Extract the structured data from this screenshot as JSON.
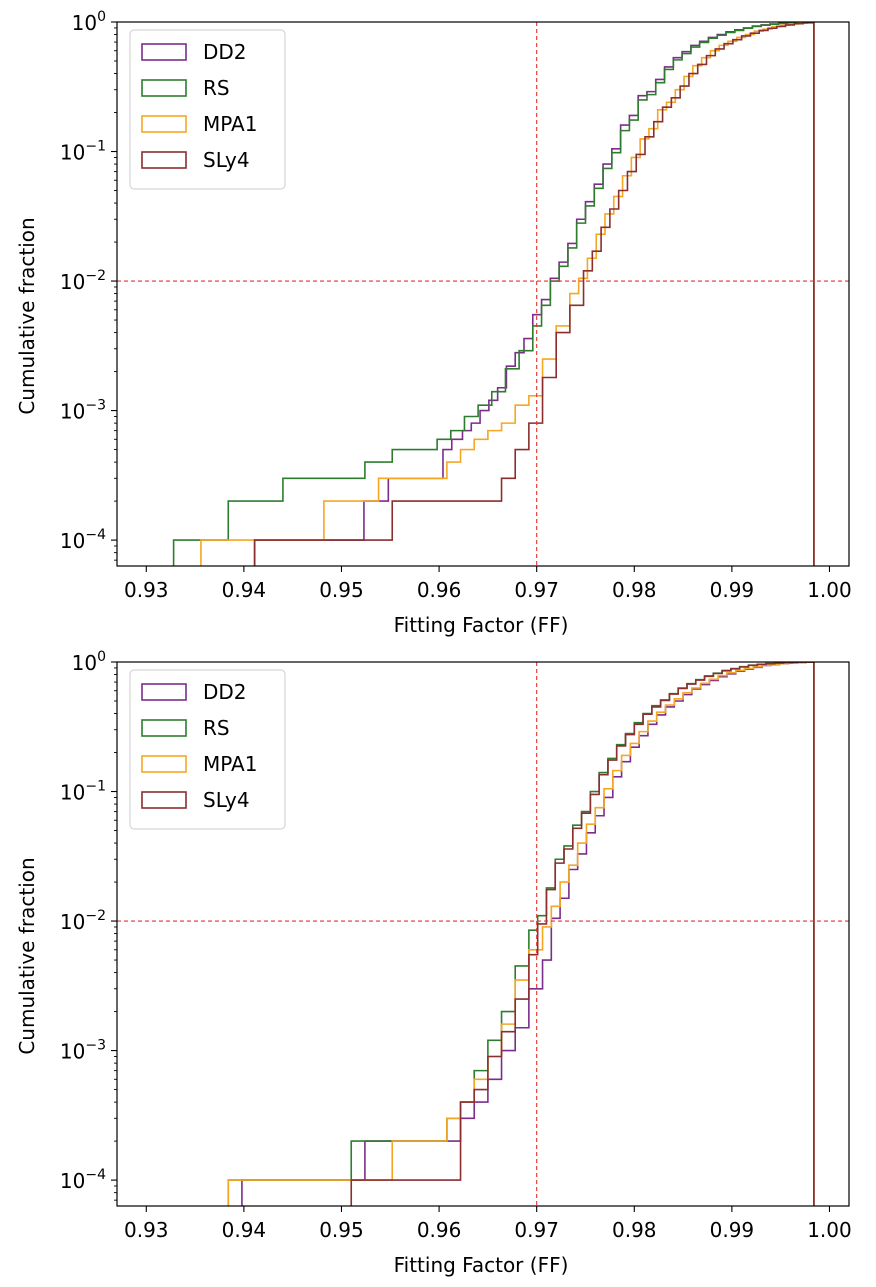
{
  "chart_data": [
    {
      "type": "step-histogram-cumulative",
      "xlabel": "Fitting Factor (FF)",
      "ylabel": "Cumulative fraction",
      "xlim": [
        0.927,
        1.002
      ],
      "ylim_log10": [
        -4.2,
        0.0
      ],
      "y_scale": "log",
      "x_ticks": [
        "0.93",
        "0.94",
        "0.95",
        "0.96",
        "0.97",
        "0.98",
        "0.99",
        "1.00"
      ],
      "x_tick_values": [
        0.93,
        0.94,
        0.95,
        0.96,
        0.97,
        0.98,
        0.99,
        1.0
      ],
      "y_tick_base": "10",
      "y_tick_exponents": [
        "0",
        "−1",
        "−2",
        "−3",
        "−4"
      ],
      "y_tick_values": [
        1,
        0.1,
        0.01,
        0.001,
        0.0001
      ],
      "reference_lines": {
        "x": 0.97,
        "y": 0.01,
        "color": "#e8322a"
      },
      "legend_position": "top-left",
      "series": [
        {
          "name": "DD2",
          "color": "#7b2d8b",
          "x": [
            0.9411,
            0.9523,
            0.9548,
            0.9604,
            0.9613,
            0.9624,
            0.9633,
            0.9642,
            0.9651,
            0.966,
            0.9669,
            0.9678,
            0.9687,
            0.9696,
            0.9705,
            0.9714,
            0.9723,
            0.9732,
            0.9741,
            0.975,
            0.9759,
            0.9768,
            0.9777,
            0.9786,
            0.9795,
            0.9804,
            0.9813,
            0.9822,
            0.9831,
            0.984,
            0.9849,
            0.9858,
            0.9867,
            0.9876,
            0.9885,
            0.9894,
            0.9903,
            0.9912,
            0.9921,
            0.993,
            0.9939,
            0.9948,
            0.9957,
            0.9966,
            0.9975,
            0.9984
          ],
          "y": [
            0.0001,
            0.0002,
            0.0003,
            0.0005,
            0.0006,
            0.0007,
            0.0008,
            0.001,
            0.0012,
            0.0015,
            0.0022,
            0.0028,
            0.0036,
            0.0055,
            0.0072,
            0.0105,
            0.014,
            0.0195,
            0.03,
            0.041,
            0.056,
            0.08,
            0.105,
            0.16,
            0.19,
            0.27,
            0.29,
            0.36,
            0.45,
            0.53,
            0.59,
            0.66,
            0.71,
            0.76,
            0.8,
            0.84,
            0.87,
            0.9,
            0.93,
            0.95,
            0.965,
            0.978,
            0.987,
            0.994,
            0.998,
            1.0
          ]
        },
        {
          "name": "RS",
          "color": "#2e7d2e",
          "x": [
            0.9328,
            0.9384,
            0.944,
            0.9524,
            0.9552,
            0.9598,
            0.9612,
            0.9626,
            0.964,
            0.9654,
            0.9668,
            0.9682,
            0.9696,
            0.9705,
            0.9714,
            0.9723,
            0.9732,
            0.9741,
            0.975,
            0.9759,
            0.9768,
            0.9777,
            0.9786,
            0.9795,
            0.9804,
            0.9813,
            0.9822,
            0.9831,
            0.984,
            0.9849,
            0.9858,
            0.9867,
            0.9876,
            0.9885,
            0.9894,
            0.9903,
            0.9912,
            0.9921,
            0.993,
            0.9939,
            0.9948,
            0.9957,
            0.9966,
            0.9975,
            0.9984
          ],
          "y": [
            0.0001,
            0.0002,
            0.0003,
            0.0004,
            0.0005,
            0.0006,
            0.0007,
            0.0009,
            0.0011,
            0.0014,
            0.0021,
            0.0029,
            0.0045,
            0.0065,
            0.01,
            0.013,
            0.018,
            0.028,
            0.038,
            0.052,
            0.074,
            0.098,
            0.145,
            0.175,
            0.25,
            0.275,
            0.34,
            0.43,
            0.51,
            0.57,
            0.64,
            0.695,
            0.75,
            0.79,
            0.83,
            0.86,
            0.895,
            0.925,
            0.945,
            0.962,
            0.976,
            0.986,
            0.993,
            0.998,
            1.0
          ]
        },
        {
          "name": "MPA1",
          "color": "#f5a623",
          "x": [
            0.9356,
            0.9482,
            0.9538,
            0.9608,
            0.9622,
            0.9636,
            0.965,
            0.9664,
            0.9678,
            0.9692,
            0.9706,
            0.972,
            0.9734,
            0.9743,
            0.9752,
            0.9761,
            0.977,
            0.9779,
            0.9788,
            0.9797,
            0.9806,
            0.9815,
            0.9824,
            0.9833,
            0.9842,
            0.9851,
            0.986,
            0.9869,
            0.9878,
            0.9887,
            0.9896,
            0.9905,
            0.9914,
            0.9923,
            0.9932,
            0.9941,
            0.995,
            0.9959,
            0.9968,
            0.9977,
            0.9984
          ],
          "y": [
            0.0001,
            0.0002,
            0.0003,
            0.0004,
            0.0005,
            0.0006,
            0.0007,
            0.0008,
            0.0011,
            0.0013,
            0.0025,
            0.0045,
            0.008,
            0.0105,
            0.015,
            0.023,
            0.033,
            0.045,
            0.065,
            0.09,
            0.125,
            0.15,
            0.21,
            0.24,
            0.3,
            0.38,
            0.46,
            0.53,
            0.6,
            0.66,
            0.71,
            0.76,
            0.8,
            0.85,
            0.88,
            0.92,
            0.945,
            0.965,
            0.98,
            0.992,
            1.0
          ]
        },
        {
          "name": "SLy4",
          "color": "#8b2e2e",
          "x": [
            0.9411,
            0.9552,
            0.9664,
            0.9678,
            0.9692,
            0.9706,
            0.972,
            0.9734,
            0.9748,
            0.9757,
            0.9766,
            0.9775,
            0.9784,
            0.9793,
            0.9802,
            0.9811,
            0.982,
            0.9829,
            0.9838,
            0.9847,
            0.9856,
            0.9865,
            0.9874,
            0.9883,
            0.9892,
            0.9901,
            0.991,
            0.9919,
            0.9928,
            0.9937,
            0.9946,
            0.9955,
            0.9964,
            0.9973,
            0.9984
          ],
          "y": [
            0.0001,
            0.0002,
            0.0003,
            0.0005,
            0.0008,
            0.0018,
            0.004,
            0.0065,
            0.012,
            0.017,
            0.026,
            0.036,
            0.05,
            0.07,
            0.095,
            0.13,
            0.17,
            0.22,
            0.26,
            0.32,
            0.4,
            0.47,
            0.55,
            0.62,
            0.68,
            0.73,
            0.78,
            0.82,
            0.86,
            0.895,
            0.925,
            0.95,
            0.97,
            0.985,
            1.0
          ]
        }
      ]
    },
    {
      "type": "step-histogram-cumulative",
      "xlabel": "Fitting Factor (FF)",
      "ylabel": "Cumulative fraction",
      "xlim": [
        0.927,
        1.002
      ],
      "ylim_log10": [
        -4.2,
        0.0
      ],
      "y_scale": "log",
      "x_ticks": [
        "0.93",
        "0.94",
        "0.95",
        "0.96",
        "0.97",
        "0.98",
        "0.99",
        "1.00"
      ],
      "x_tick_values": [
        0.93,
        0.94,
        0.95,
        0.96,
        0.97,
        0.98,
        0.99,
        1.0
      ],
      "y_tick_base": "10",
      "y_tick_exponents": [
        "0",
        "−1",
        "−2",
        "−3",
        "−4"
      ],
      "y_tick_values": [
        1,
        0.1,
        0.01,
        0.001,
        0.0001
      ],
      "reference_lines": {
        "x": 0.97,
        "y": 0.01,
        "color": "#e8322a"
      },
      "legend_position": "top-left",
      "series": [
        {
          "name": "DD2",
          "color": "#7b2d8b",
          "x": [
            0.9398,
            0.9524,
            0.9622,
            0.9636,
            0.965,
            0.9664,
            0.9678,
            0.9692,
            0.9706,
            0.9715,
            0.9724,
            0.9733,
            0.9742,
            0.9751,
            0.976,
            0.9769,
            0.9778,
            0.9787,
            0.9796,
            0.9805,
            0.9814,
            0.9823,
            0.9832,
            0.9841,
            0.985,
            0.9859,
            0.9868,
            0.9877,
            0.9886,
            0.9895,
            0.9904,
            0.9913,
            0.9922,
            0.9931,
            0.994,
            0.9949,
            0.9958,
            0.9967,
            0.9976,
            0.9984
          ],
          "y": [
            0.0001,
            0.0002,
            0.0003,
            0.0004,
            0.0006,
            0.001,
            0.0015,
            0.003,
            0.005,
            0.0105,
            0.015,
            0.025,
            0.033,
            0.048,
            0.065,
            0.09,
            0.13,
            0.17,
            0.22,
            0.27,
            0.33,
            0.39,
            0.45,
            0.5,
            0.56,
            0.62,
            0.67,
            0.72,
            0.77,
            0.81,
            0.85,
            0.88,
            0.91,
            0.94,
            0.955,
            0.97,
            0.982,
            0.99,
            0.996,
            1.0
          ]
        },
        {
          "name": "RS",
          "color": "#2e7d2e",
          "x": [
            0.9384,
            0.951,
            0.9608,
            0.9622,
            0.9636,
            0.965,
            0.9664,
            0.9678,
            0.9692,
            0.9701,
            0.971,
            0.9719,
            0.9728,
            0.9737,
            0.9746,
            0.9755,
            0.9764,
            0.9773,
            0.9782,
            0.9791,
            0.98,
            0.9809,
            0.9818,
            0.9827,
            0.9836,
            0.9845,
            0.9854,
            0.9863,
            0.9872,
            0.9881,
            0.989,
            0.9899,
            0.9908,
            0.9917,
            0.9926,
            0.9935,
            0.9944,
            0.9953,
            0.9962,
            0.9971,
            0.9984
          ],
          "y": [
            0.0001,
            0.0002,
            0.0003,
            0.0004,
            0.0007,
            0.0012,
            0.002,
            0.0045,
            0.0085,
            0.011,
            0.018,
            0.03,
            0.038,
            0.055,
            0.07,
            0.1,
            0.14,
            0.18,
            0.23,
            0.28,
            0.34,
            0.4,
            0.46,
            0.51,
            0.57,
            0.63,
            0.68,
            0.73,
            0.78,
            0.82,
            0.86,
            0.89,
            0.92,
            0.945,
            0.96,
            0.972,
            0.983,
            0.991,
            0.996,
            0.999,
            1.0
          ]
        },
        {
          "name": "MPA1",
          "color": "#f5a623",
          "x": [
            0.9384,
            0.9552,
            0.9608,
            0.9622,
            0.9636,
            0.965,
            0.9664,
            0.9678,
            0.9692,
            0.9706,
            0.9715,
            0.9724,
            0.9733,
            0.9742,
            0.9751,
            0.976,
            0.9769,
            0.9778,
            0.9787,
            0.9796,
            0.9805,
            0.9814,
            0.9823,
            0.9832,
            0.9841,
            0.985,
            0.9859,
            0.9868,
            0.9877,
            0.9886,
            0.9895,
            0.9904,
            0.9913,
            0.9922,
            0.9931,
            0.994,
            0.9949,
            0.9958,
            0.9967,
            0.9976,
            0.9984
          ],
          "y": [
            0.0001,
            0.0002,
            0.0003,
            0.0004,
            0.0006,
            0.0009,
            0.0016,
            0.0035,
            0.006,
            0.009,
            0.013,
            0.02,
            0.027,
            0.04,
            0.056,
            0.075,
            0.105,
            0.145,
            0.19,
            0.235,
            0.29,
            0.35,
            0.41,
            0.465,
            0.52,
            0.58,
            0.63,
            0.685,
            0.735,
            0.785,
            0.825,
            0.86,
            0.89,
            0.92,
            0.945,
            0.96,
            0.972,
            0.983,
            0.991,
            0.996,
            1.0
          ]
        },
        {
          "name": "SLy4",
          "color": "#8b2e2e",
          "x": [
            0.951,
            0.9622,
            0.9636,
            0.965,
            0.9664,
            0.9678,
            0.9692,
            0.9701,
            0.971,
            0.9719,
            0.9728,
            0.9737,
            0.9746,
            0.9755,
            0.9764,
            0.9773,
            0.9782,
            0.9791,
            0.98,
            0.9809,
            0.9818,
            0.9827,
            0.9836,
            0.9845,
            0.9854,
            0.9863,
            0.9872,
            0.9881,
            0.989,
            0.9899,
            0.9908,
            0.9917,
            0.9926,
            0.9935,
            0.9944,
            0.9953,
            0.9962,
            0.9971,
            0.9984
          ],
          "y": [
            0.0001,
            0.0004,
            0.0005,
            0.0009,
            0.0014,
            0.0025,
            0.0055,
            0.0095,
            0.0175,
            0.028,
            0.036,
            0.052,
            0.068,
            0.095,
            0.135,
            0.175,
            0.225,
            0.275,
            0.33,
            0.395,
            0.45,
            0.505,
            0.565,
            0.625,
            0.675,
            0.725,
            0.775,
            0.815,
            0.855,
            0.885,
            0.915,
            0.942,
            0.958,
            0.97,
            0.982,
            0.99,
            0.996,
            0.999,
            1.0
          ]
        }
      ]
    }
  ]
}
